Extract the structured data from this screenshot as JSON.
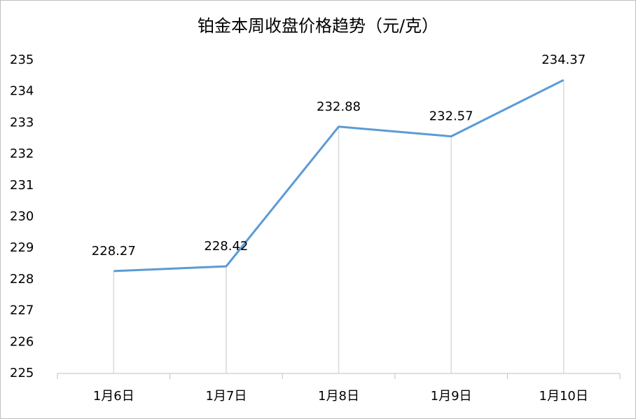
{
  "chart_data": {
    "type": "line",
    "title": "铂金本周收盘价格趋势（元/克）",
    "categories": [
      "1月6日",
      "1月7日",
      "1月8日",
      "1月9日",
      "1月10日"
    ],
    "values": [
      228.27,
      228.42,
      232.88,
      232.57,
      234.37
    ],
    "color": "#5b9bd5",
    "drop_lines": true,
    "ylim": [
      225,
      235
    ],
    "yticks": [
      225,
      226,
      227,
      228,
      229,
      230,
      231,
      232,
      233,
      234,
      235
    ],
    "grid": false
  }
}
